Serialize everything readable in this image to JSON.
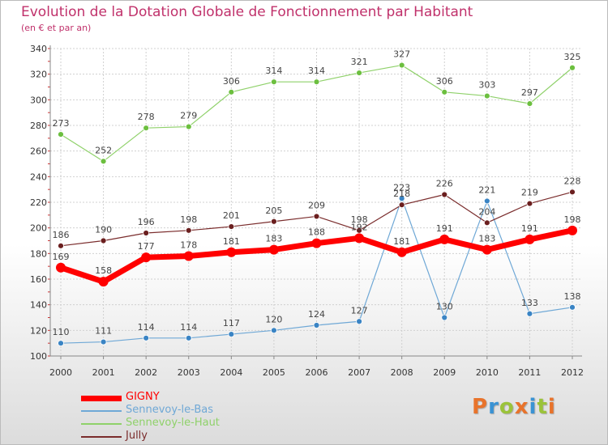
{
  "header": {
    "title": "Evolution de la Dotation Globale de Fonctionnement par Habitant",
    "subtitle": "(en € et par an)"
  },
  "logo": {
    "text": "Proxiti",
    "colors": [
      "#e8732b",
      "#3a93d4",
      "#9bc33a",
      "#e8732b",
      "#3a93d4",
      "#9bc33a",
      "#e8732b"
    ]
  },
  "chart_data": {
    "type": "line",
    "x": [
      "2000",
      "2001",
      "2002",
      "2003",
      "2004",
      "2005",
      "2006",
      "2007",
      "2008",
      "2009",
      "2010",
      "2011",
      "2012"
    ],
    "ylim": [
      100,
      340
    ],
    "yticks": [
      100,
      120,
      140,
      160,
      180,
      200,
      220,
      240,
      260,
      280,
      300,
      320,
      340
    ],
    "grid": true,
    "legend_position": "bottom-left",
    "series": [
      {
        "name": "GIGNY",
        "color": "#ff0000",
        "line_width": 7,
        "marker_radius": 6,
        "point_color": "#ff0000",
        "values": [
          169,
          158,
          177,
          178,
          181,
          183,
          188,
          192,
          181,
          191,
          183,
          191,
          198
        ],
        "labels": [
          "169",
          "158",
          "177",
          "178",
          "181",
          "183",
          "188",
          "192",
          "181",
          "191",
          "183",
          "191",
          "198"
        ]
      },
      {
        "name": "Sennevoy-le-Bas",
        "color": "#6fa8d6",
        "line_width": 1.2,
        "marker_radius": 3.5,
        "point_color": "#3a84c4",
        "values": [
          110,
          111,
          114,
          114,
          117,
          120,
          124,
          127,
          223,
          130,
          221,
          133,
          138
        ],
        "labels": [
          "110",
          "111",
          "114",
          "114",
          "117",
          "120",
          "124",
          "127",
          "223",
          "130",
          "221",
          "133",
          "138"
        ]
      },
      {
        "name": "Sennevoy-le-Haut",
        "color": "#8fd16a",
        "line_width": 1.2,
        "marker_radius": 3.5,
        "point_color": "#6cbf3f",
        "values": [
          273,
          252,
          278,
          279,
          306,
          314,
          314,
          321,
          327,
          306,
          303,
          297,
          325
        ],
        "labels": [
          "273",
          "252",
          "278",
          "279",
          "306",
          "314",
          "314",
          "321",
          "327",
          "306",
          "303",
          "297",
          "325"
        ]
      },
      {
        "name": "Jully",
        "color": "#7a2c2c",
        "line_width": 1.2,
        "marker_radius": 3.5,
        "point_color": "#6b1f1f",
        "values": [
          186,
          190,
          196,
          198,
          201,
          205,
          209,
          198,
          218,
          226,
          204,
          219,
          228
        ],
        "labels": [
          "186",
          "190",
          "196",
          "198",
          "201",
          "205",
          "209",
          "198",
          "218",
          "226",
          "204",
          "219",
          "228"
        ]
      }
    ]
  }
}
